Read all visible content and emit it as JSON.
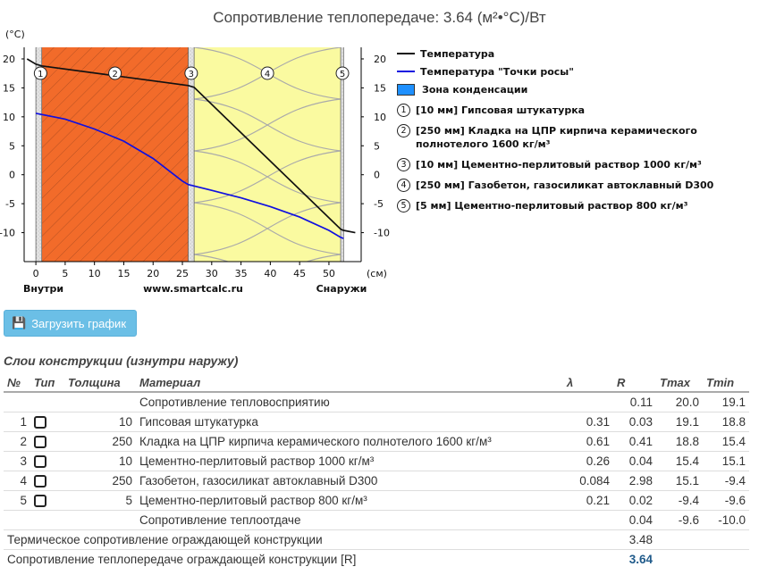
{
  "chart_data": {
    "type": "line",
    "title": "Сопротивление теплопередаче: 3.64 (м²•°С)/Вт",
    "ylabel": "(°C)",
    "xlabel": "(см)",
    "x_ticks": [
      "0",
      "5",
      "10",
      "15",
      "20",
      "25",
      "30",
      "35",
      "40",
      "45",
      "50"
    ],
    "y_ticks": [
      "20",
      "15",
      "10",
      "5",
      "0",
      "-5",
      "-10"
    ],
    "ylim": [
      -15,
      22
    ],
    "xlim": [
      -2,
      55.5
    ],
    "left_caption": "Внутри",
    "center_caption": "www.smartcalc.ru",
    "right_caption": "Снаружи",
    "layer_bounds": [
      0,
      1,
      26,
      27,
      52,
      52.5
    ],
    "series": [
      {
        "name": "Температура",
        "color": "#111111",
        "x": [
          -1.5,
          0,
          1,
          26,
          27,
          52,
          52.5,
          54.5
        ],
        "y": [
          20.0,
          19.1,
          18.8,
          15.4,
          15.1,
          -9.4,
          -9.6,
          -10.0
        ]
      },
      {
        "name": "Температура \"Точки росы\"",
        "color": "#1010e0",
        "x": [
          0,
          5,
          10,
          15,
          20,
          25,
          26,
          30,
          35,
          40,
          45,
          50,
          52,
          52.5
        ],
        "y": [
          10.6,
          9.6,
          7.9,
          5.8,
          2.8,
          -1.1,
          -1.7,
          -2.7,
          -4.0,
          -5.5,
          -7.3,
          -9.6,
          -10.8,
          -11.0
        ]
      }
    ],
    "legend": {
      "temperature": "Температура",
      "dewpoint": "Температура \"Точки росы\"",
      "condensation": "Зона конденсации"
    },
    "layers": [
      {
        "num": "1",
        "text": "[10 мм] Гипсовая штукатурка"
      },
      {
        "num": "2",
        "text": "[250 мм] Кладка на ЦПР кирпича керамического полнотелого 1600 кг/м³"
      },
      {
        "num": "3",
        "text": "[10 мм] Цементно-перлитовый раствор 1000 кг/м³"
      },
      {
        "num": "4",
        "text": "[250 мм] Газобетон, газосиликат автоклавный D300"
      },
      {
        "num": "5",
        "text": "[5 мм] Цементно-перлитовый раствор 800 кг/м³"
      }
    ],
    "colors": {
      "plaster": "#e4e4e4",
      "brick": "#f26b2a",
      "concrete": "#fafaa0"
    }
  },
  "download_button": "Загрузить график",
  "layers_title": "Слои конструкции (изнутри наружу)",
  "table": {
    "headers": [
      "№",
      "Тип",
      "Толщина",
      "Материал",
      "λ",
      "R",
      "Tmax",
      "Tmin"
    ],
    "rows": [
      {
        "num": "",
        "type": false,
        "thick": "",
        "material": "Сопротивление тепловосприятию",
        "lambda": "",
        "r": "0.11",
        "tmax": "20.0",
        "tmin": "19.1"
      },
      {
        "num": "1",
        "type": true,
        "thick": "10",
        "material": "Гипсовая штукатурка",
        "lambda": "0.31",
        "r": "0.03",
        "tmax": "19.1",
        "tmin": "18.8"
      },
      {
        "num": "2",
        "type": true,
        "thick": "250",
        "material": "Кладка на ЦПР кирпича керамического полнотелого 1600 кг/м³",
        "lambda": "0.61",
        "r": "0.41",
        "tmax": "18.8",
        "tmin": "15.4"
      },
      {
        "num": "3",
        "type": true,
        "thick": "10",
        "material": "Цементно-перлитовый раствор 1000 кг/м³",
        "lambda": "0.26",
        "r": "0.04",
        "tmax": "15.4",
        "tmin": "15.1"
      },
      {
        "num": "4",
        "type": true,
        "thick": "250",
        "material": "Газобетон, газосиликат автоклавный D300",
        "lambda": "0.084",
        "r": "2.98",
        "tmax": "15.1",
        "tmin": "-9.4"
      },
      {
        "num": "5",
        "type": true,
        "thick": "5",
        "material": "Цементно-перлитовый раствор 800 кг/м³",
        "lambda": "0.21",
        "r": "0.02",
        "tmax": "-9.4",
        "tmin": "-9.6"
      },
      {
        "num": "",
        "type": false,
        "thick": "",
        "material": "Сопротивление теплоотдаче",
        "lambda": "",
        "r": "0.04",
        "tmax": "-9.6",
        "tmin": "-10.0"
      }
    ],
    "total_thermal_label": "Термическое сопротивление ограждающей конструкции",
    "total_thermal_value": "3.48",
    "total_transfer_label": "Сопротивление теплопередаче ограждающей конструкции [R]",
    "total_transfer_value": "3.64"
  }
}
